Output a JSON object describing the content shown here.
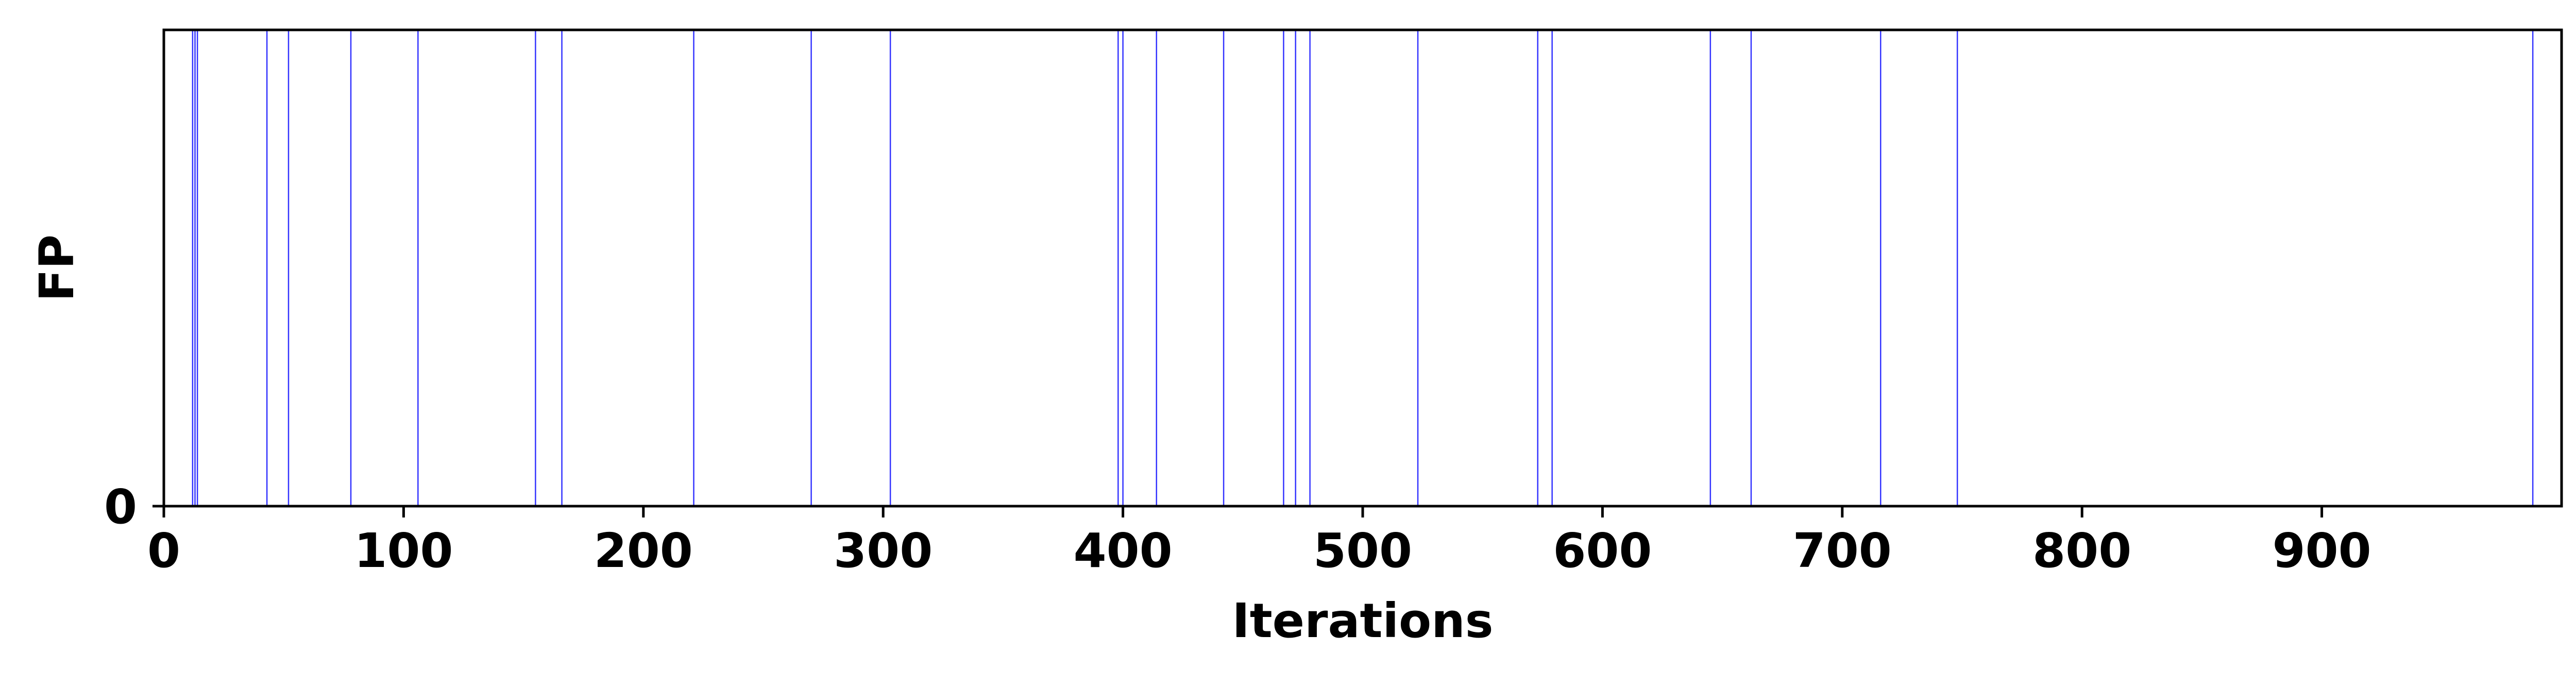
{
  "chart_data": {
    "type": "event_lines",
    "xlabel": "Iterations",
    "ylabel": "FP",
    "xlim": [
      0,
      1000
    ],
    "xticks": [
      0,
      100,
      200,
      300,
      400,
      500,
      600,
      700,
      800,
      900
    ],
    "xtick_labels": [
      "0",
      "100",
      "200",
      "300",
      "400",
      "500",
      "600",
      "700",
      "800",
      "900"
    ],
    "yticks": [
      0
    ],
    "ytick_labels": [
      "0"
    ],
    "grid": false,
    "line_color": "#0000ff",
    "events": [
      12,
      13,
      14,
      43,
      52,
      78,
      106,
      155,
      166,
      221,
      270,
      303,
      398,
      400,
      414,
      442,
      467,
      472,
      478,
      523,
      573,
      579,
      645,
      662,
      716,
      748,
      988
    ]
  }
}
